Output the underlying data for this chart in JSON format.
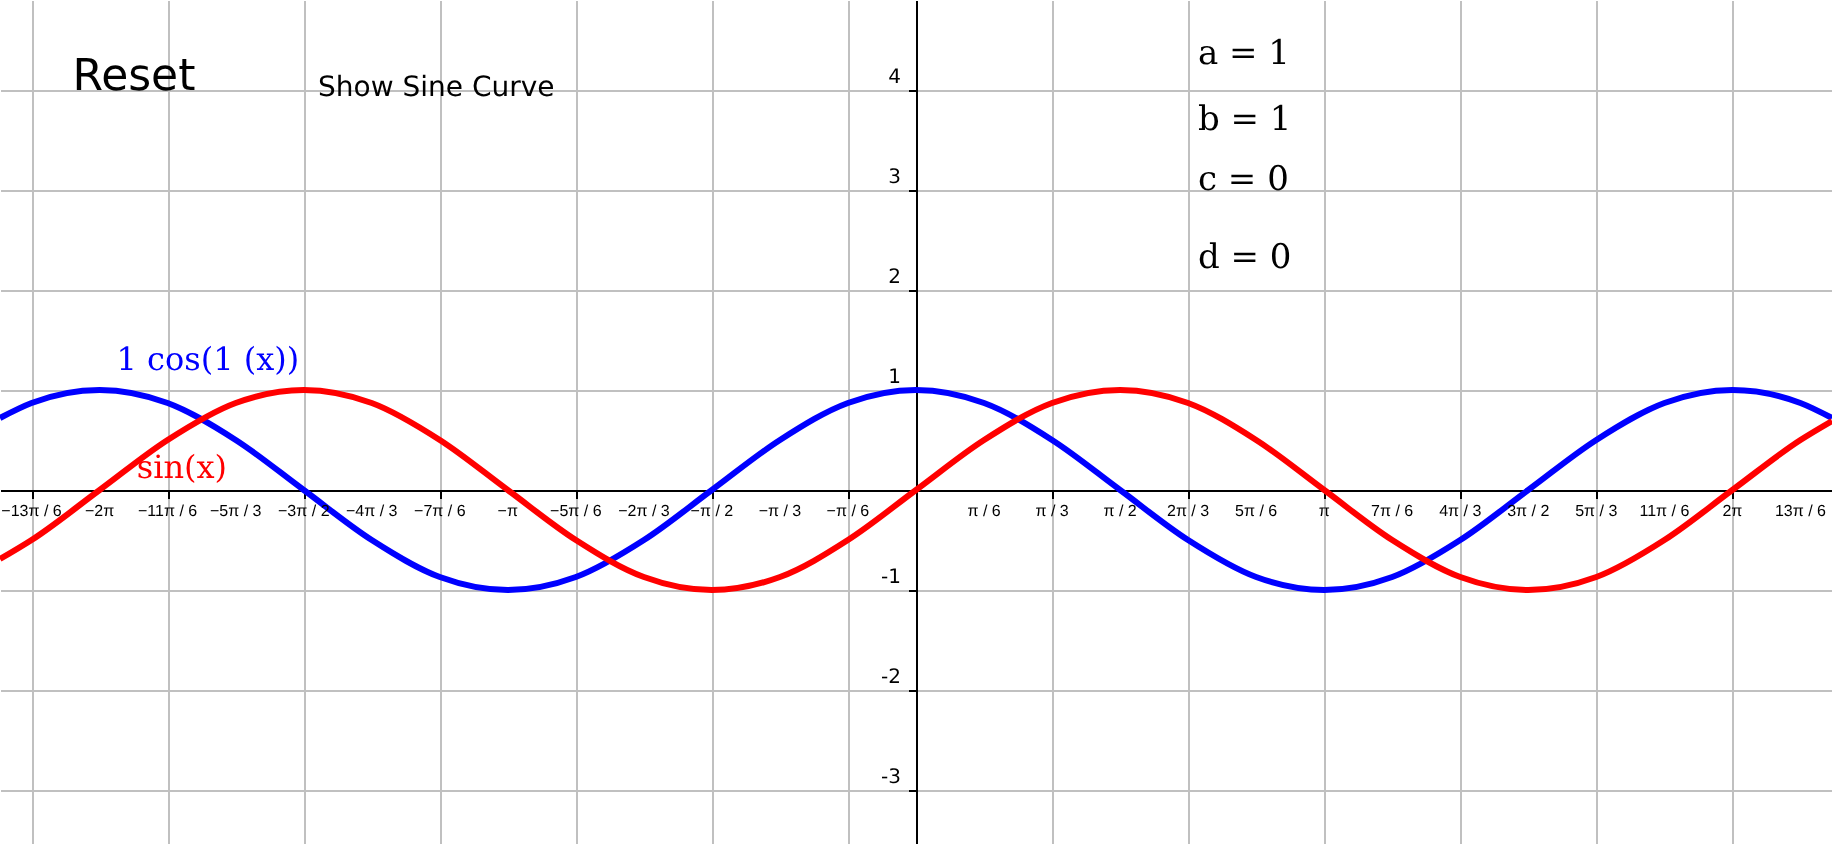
{
  "chart_data": {
    "type": "line",
    "x": [
      -7.05,
      -6.807,
      -6.283,
      -5.76,
      -5.236,
      -4.712,
      -4.189,
      -3.665,
      -3.142,
      -2.618,
      -2.094,
      -1.571,
      -1.047,
      -0.524,
      0,
      0.524,
      1.047,
      1.571,
      2.094,
      2.618,
      3.142,
      3.665,
      4.189,
      4.712,
      5.236,
      5.76,
      6.283,
      6.807,
      7.05
    ],
    "series": [
      {
        "name": "1  cos(1  (x))",
        "color": "#0000ff",
        "values": [
          0.72,
          0.87,
          1,
          0.87,
          0.5,
          0,
          -0.5,
          -0.87,
          -1,
          -0.87,
          -0.5,
          0,
          0.5,
          0.87,
          1,
          0.87,
          0.5,
          0,
          -0.5,
          -0.87,
          -1,
          -0.87,
          -0.5,
          0,
          0.5,
          0.87,
          1,
          0.87,
          0.72
        ]
      },
      {
        "name": "sin(x)",
        "color": "#ff0000",
        "values": [
          -0.69,
          -0.5,
          0,
          0.5,
          0.87,
          1,
          0.87,
          0.5,
          0,
          -0.5,
          -0.87,
          -1,
          -0.87,
          -0.5,
          0,
          0.5,
          0.87,
          1,
          0.87,
          0.5,
          0,
          -0.5,
          -0.87,
          -1,
          -0.87,
          -0.5,
          0,
          0.5,
          0.69
        ]
      }
    ],
    "xlim": [
      -7.05,
      7.05
    ],
    "ylim": [
      -3.54,
      4.9
    ],
    "xticks": [
      {
        "value": -6.807,
        "label": "−13π / 6"
      },
      {
        "value": -6.283,
        "label": "−2π"
      },
      {
        "value": -5.76,
        "label": "−11π / 6"
      },
      {
        "value": -5.236,
        "label": "−5π / 3"
      },
      {
        "value": -4.712,
        "label": "−3π / 2"
      },
      {
        "value": -4.189,
        "label": "−4π / 3"
      },
      {
        "value": -3.665,
        "label": "−7π / 6"
      },
      {
        "value": -3.142,
        "label": "−π"
      },
      {
        "value": -2.618,
        "label": "−5π / 6"
      },
      {
        "value": -2.094,
        "label": "−2π / 3"
      },
      {
        "value": -1.571,
        "label": "−π / 2"
      },
      {
        "value": -1.047,
        "label": "−π / 3"
      },
      {
        "value": -0.524,
        "label": "−π / 6"
      },
      {
        "value": 0.524,
        "label": "π / 6"
      },
      {
        "value": 1.047,
        "label": "π / 3"
      },
      {
        "value": 1.571,
        "label": "π / 2"
      },
      {
        "value": 2.094,
        "label": "2π / 3"
      },
      {
        "value": 2.618,
        "label": "5π / 6"
      },
      {
        "value": 3.142,
        "label": "π"
      },
      {
        "value": 3.665,
        "label": "7π / 6"
      },
      {
        "value": 4.189,
        "label": "4π / 3"
      },
      {
        "value": 4.712,
        "label": "3π / 2"
      },
      {
        "value": 5.236,
        "label": "5π / 3"
      },
      {
        "value": 5.76,
        "label": "11π / 6"
      },
      {
        "value": 6.283,
        "label": "2π"
      },
      {
        "value": 6.807,
        "label": "13π / 6"
      }
    ],
    "yticks": [
      -3,
      -2,
      -1,
      {
        "value": 0,
        "label": null
      },
      1,
      2,
      3,
      4
    ],
    "grid": true,
    "annotations": [
      "Reset",
      "Show Sine Curve",
      "a = 1",
      "b = 1",
      "c = 0",
      "d = 0"
    ]
  }
}
